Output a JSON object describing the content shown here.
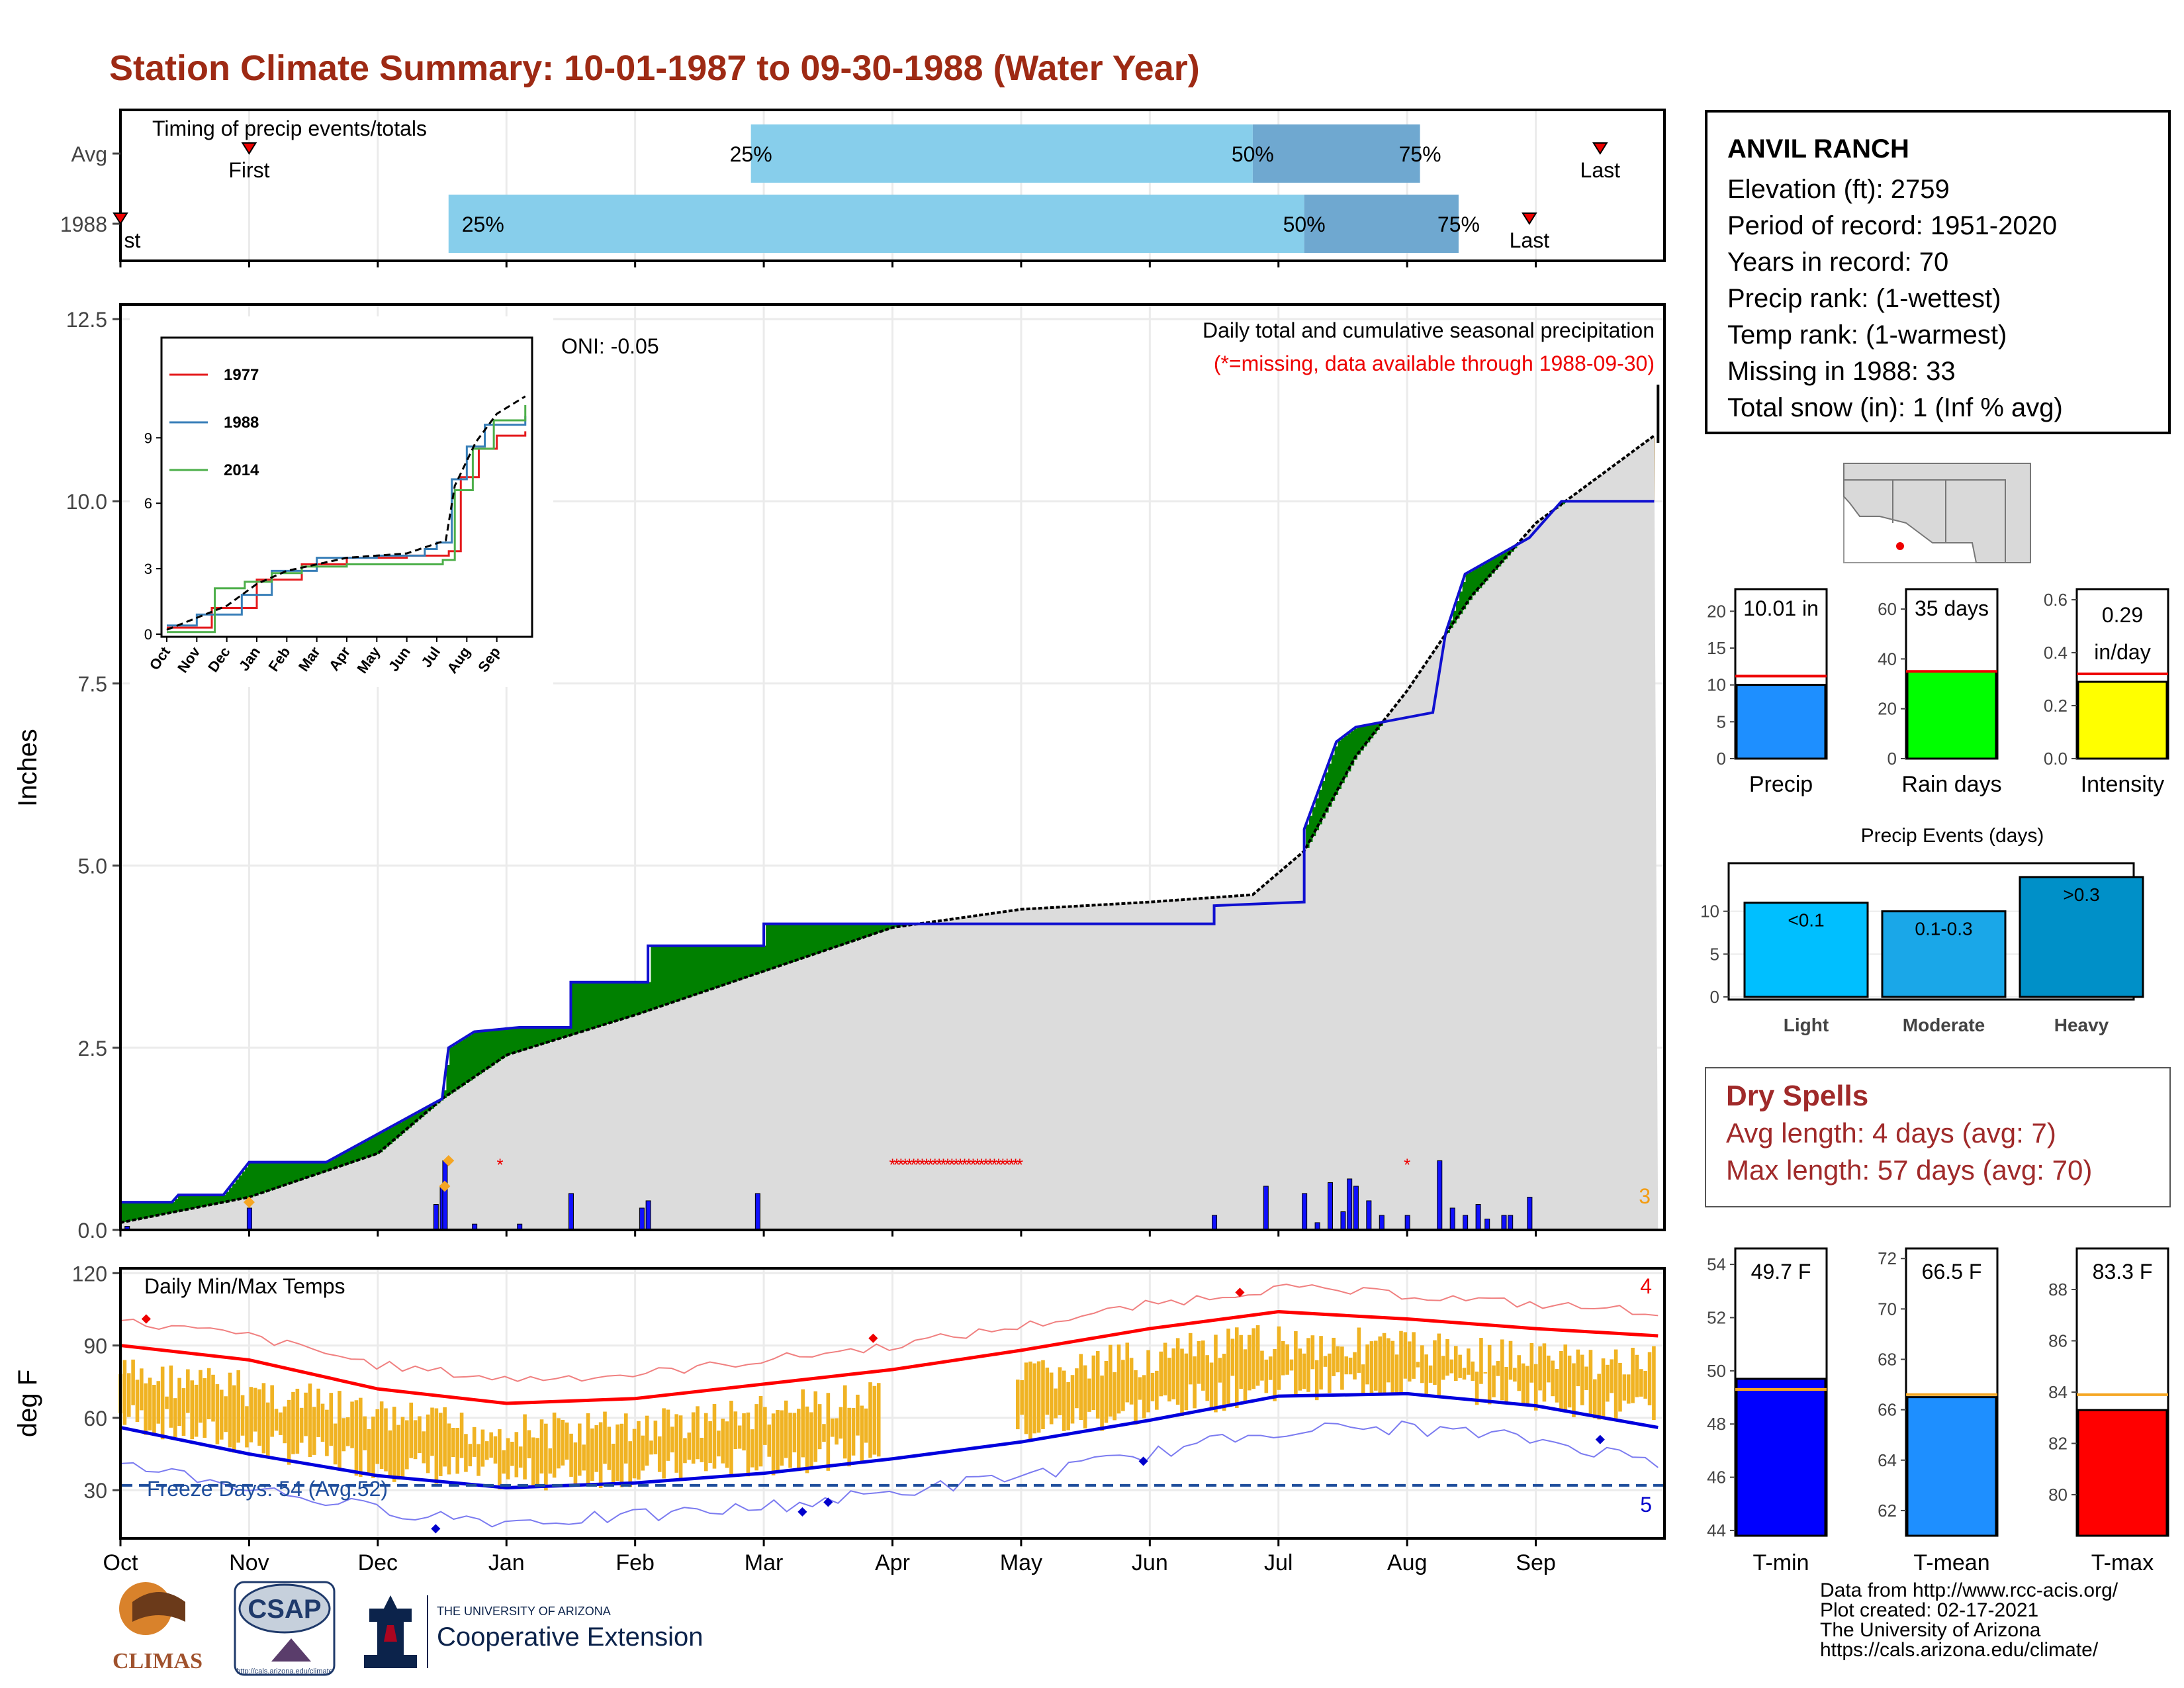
{
  "title": "Station Climate Summary: 10-01-1987 to 09-30-1988 (Water Year)",
  "timing": {
    "label": "Timing of precip events/totals",
    "rows": [
      {
        "name": "Avg",
        "first_month": 1.0,
        "p25_month": 4.9,
        "p50_month": 8.8,
        "p75_month": 10.1,
        "last_month": 11.5
      },
      {
        "name": "1988",
        "first_month": 0.0,
        "p25_month": 2.55,
        "p50_month": 9.2,
        "p75_month": 10.4,
        "last_month": 10.95
      }
    ],
    "first_label": "First",
    "last_label": "Last",
    "first_label_clipped": "st",
    "p25": "25%",
    "p50": "50%",
    "p75": "75%"
  },
  "precip_panel": {
    "ylabel": "Inches",
    "note": "Daily total and cumulative seasonal precipitation",
    "missing_note": "(*=missing, data available through 1988-09-30)",
    "oni": "ONI: -0.05",
    "count_label": "3",
    "yticks": [
      "0.0",
      "2.5",
      "5.0",
      "7.5",
      "10.0",
      "12.5"
    ]
  },
  "inset": {
    "legend": [
      "1977",
      "1988",
      "2014"
    ],
    "legend_colors": [
      "#e41a1c",
      "#377eb8",
      "#4daf4a"
    ],
    "yticks": [
      "0",
      "3",
      "6",
      "9"
    ],
    "xticks": [
      "Oct",
      "Nov",
      "Dec",
      "Jan",
      "Feb",
      "Mar",
      "Apr",
      "May",
      "Jun",
      "Jul",
      "Aug",
      "Sep"
    ]
  },
  "temp_panel": {
    "ylabel": "deg F",
    "label": "Daily Min/Max Temps",
    "freeze": "Freeze Days: 54 (Avg:52)",
    "count_hi": "4",
    "count_lo": "5",
    "yticks": [
      "30",
      "60",
      "90",
      "120"
    ]
  },
  "months": [
    "Oct",
    "Nov",
    "Dec",
    "Jan",
    "Feb",
    "Mar",
    "Apr",
    "May",
    "Jun",
    "Jul",
    "Aug",
    "Sep"
  ],
  "station": {
    "name": "ANVIL RANCH",
    "lines": [
      "Elevation (ft): 2759",
      "Period of record: 1951-2020",
      "Years in record: 70",
      "Precip rank:  (1-wettest)",
      "Temp rank:  (1-warmest)",
      "Missing in 1988: 33",
      "Total snow (in): 1 (Inf % avg)"
    ]
  },
  "summary_bars": [
    {
      "label": "Precip",
      "value_text": "10.01 in",
      "yticks": [
        "0",
        "5",
        "10",
        "15",
        "20"
      ]
    },
    {
      "label": "Rain days",
      "value_text": "35 days",
      "yticks": [
        "0",
        "20",
        "40",
        "60"
      ]
    },
    {
      "label": "Intensity",
      "value_text": "0.29\nin/day",
      "yticks": [
        "0.0",
        "0.2",
        "0.4",
        "0.6"
      ]
    }
  ],
  "events": {
    "title": "Precip Events (days)",
    "categories": [
      "Light",
      "Moderate",
      "Heavy"
    ],
    "bar_labels": [
      "<0.1",
      "0.1-0.3",
      ">0.3"
    ],
    "yticks": [
      "0",
      "5",
      "10"
    ]
  },
  "dry": {
    "title": "Dry Spells",
    "avg": "Avg length: 4 days (avg: 7)",
    "max": "Max length: 57 days (avg: 70)"
  },
  "temp_bars": [
    {
      "label": "T-min",
      "value_text": "49.7 F",
      "yticks": [
        "44",
        "46",
        "48",
        "50",
        "52",
        "54"
      ]
    },
    {
      "label": "T-mean",
      "value_text": "66.5 F",
      "yticks": [
        "62",
        "64",
        "66",
        "68",
        "70",
        "72"
      ]
    },
    {
      "label": "T-max",
      "value_text": "83.3 F",
      "yticks": [
        "80",
        "82",
        "84",
        "86",
        "88"
      ]
    }
  ],
  "footer": [
    "Data from http://www.rcc-acis.org/",
    "Plot created: 02-17-2021",
    "The University of Arizona",
    "https://cals.arizona.edu/climate/"
  ],
  "logos": {
    "climas": "CLIMAS",
    "csap": "CSAP",
    "ua_top": "THE UNIVERSITY OF ARIZONA",
    "ua_bottom": "Cooperative Extension",
    "csap_url": "http://cals.arizona.edu/climate"
  },
  "colors": {
    "title": "#9e2a14",
    "light_blue": "#87ceeb",
    "mid_blue": "#6fa8d0",
    "brown": "#8b5a00",
    "green": "#008000",
    "gold": "#f0b323"
  },
  "chart_data": [
    {
      "type": "area",
      "title": "Daily total and cumulative seasonal precipitation",
      "ylabel": "Inches",
      "ylim": [
        0,
        12.7
      ],
      "x_unit": "month index from Oct 1",
      "series": [
        {
          "name": "1988 cumulative",
          "points": [
            [
              0,
              0.38
            ],
            [
              0.4,
              0.38
            ],
            [
              0.45,
              0.48
            ],
            [
              0.8,
              0.48
            ],
            [
              1.0,
              0.93
            ],
            [
              1.6,
              0.93
            ],
            [
              2.5,
              1.8
            ],
            [
              2.55,
              2.5
            ],
            [
              2.75,
              2.72
            ],
            [
              3.1,
              2.78
            ],
            [
              3.5,
              2.78
            ],
            [
              3.5,
              3.4
            ],
            [
              4.1,
              3.4
            ],
            [
              4.1,
              3.9
            ],
            [
              5.0,
              3.9
            ],
            [
              5.0,
              4.2
            ],
            [
              6.0,
              4.2
            ],
            [
              7.0,
              4.2
            ],
            [
              8.5,
              4.2
            ],
            [
              8.5,
              4.45
            ],
            [
              9.2,
              4.5
            ],
            [
              9.2,
              5.5
            ],
            [
              9.45,
              6.7
            ],
            [
              9.6,
              6.9
            ],
            [
              10.2,
              7.1
            ],
            [
              10.3,
              8.2
            ],
            [
              10.45,
              9.0
            ],
            [
              10.95,
              9.5
            ],
            [
              11.2,
              10.0
            ],
            [
              11.92,
              10.0
            ]
          ]
        },
        {
          "name": "Average cumulative",
          "points": [
            [
              0,
              0.1
            ],
            [
              1,
              0.45
            ],
            [
              2,
              1.05
            ],
            [
              2.5,
              1.8
            ],
            [
              3,
              2.4
            ],
            [
              4,
              2.95
            ],
            [
              5,
              3.55
            ],
            [
              6,
              4.15
            ],
            [
              7,
              4.4
            ],
            [
              8,
              4.5
            ],
            [
              8.8,
              4.6
            ],
            [
              9.2,
              5.2
            ],
            [
              9.6,
              6.5
            ],
            [
              10,
              7.4
            ],
            [
              10.5,
              8.7
            ],
            [
              11,
              9.7
            ],
            [
              11.92,
              10.9
            ]
          ]
        }
      ]
    },
    {
      "type": "line",
      "title": "",
      "xticks": [
        "Oct",
        "Nov",
        "Dec",
        "Jan",
        "Feb",
        "Mar",
        "Apr",
        "May",
        "Jun",
        "Jul",
        "Aug",
        "Sep"
      ],
      "ylim": [
        0,
        12
      ],
      "series": [
        {
          "name": "1977",
          "points": [
            [
              0,
              0.3
            ],
            [
              1.5,
              1.2
            ],
            [
              3,
              2.5
            ],
            [
              4.5,
              3.2
            ],
            [
              6,
              3.5
            ],
            [
              8,
              3.6
            ],
            [
              9.4,
              3.8
            ],
            [
              9.8,
              7.2
            ],
            [
              10.4,
              8.5
            ],
            [
              11,
              9.1
            ],
            [
              11.95,
              9.3
            ]
          ]
        },
        {
          "name": "1988",
          "points": [
            [
              0,
              0.4
            ],
            [
              1,
              0.9
            ],
            [
              2.5,
              1.8
            ],
            [
              3.5,
              2.9
            ],
            [
              5,
              3.5
            ],
            [
              7,
              3.6
            ],
            [
              8.6,
              3.9
            ],
            [
              9.0,
              4.2
            ],
            [
              9.5,
              7.1
            ],
            [
              10,
              8.6
            ],
            [
              10.6,
              9.6
            ],
            [
              11.95,
              10.0
            ]
          ]
        },
        {
          "name": "2014",
          "points": [
            [
              0,
              0.1
            ],
            [
              1.5,
              0.1
            ],
            [
              1.6,
              2.1
            ],
            [
              2.6,
              2.4
            ],
            [
              3.5,
              2.8
            ],
            [
              4.5,
              3.1
            ],
            [
              6,
              3.2
            ],
            [
              8,
              3.2
            ],
            [
              9.2,
              3.4
            ],
            [
              9.6,
              6.6
            ],
            [
              10.2,
              8.5
            ],
            [
              10.9,
              9.8
            ],
            [
              11.95,
              10.5
            ]
          ]
        }
      ]
    },
    {
      "type": "bar",
      "title": "Precip Events (days)",
      "categories": [
        "Light",
        "Moderate",
        "Heavy"
      ],
      "values": [
        11,
        10,
        14
      ],
      "ylim": [
        0,
        15
      ]
    },
    {
      "type": "bar",
      "categories": [
        "Precip",
        "Rain days",
        "Intensity"
      ],
      "values": [
        10.01,
        35,
        0.29
      ],
      "averages": [
        11.2,
        35,
        0.32
      ]
    },
    {
      "type": "bar",
      "categories": [
        "T-min",
        "T-mean",
        "T-max"
      ],
      "values": [
        49.7,
        66.5,
        83.3
      ],
      "averages": [
        49.3,
        66.6,
        83.9
      ]
    },
    {
      "type": "line",
      "title": "Daily Min/Max Temps",
      "ylabel": "deg F",
      "ylim": [
        10,
        122
      ],
      "series": [
        {
          "name": "Avg max",
          "points": [
            [
              0,
              90
            ],
            [
              1,
              84
            ],
            [
              2,
              72
            ],
            [
              3,
              66
            ],
            [
              4,
              68
            ],
            [
              5,
              74
            ],
            [
              6,
              80
            ],
            [
              7,
              88
            ],
            [
              8,
              97
            ],
            [
              9,
              104
            ],
            [
              10,
              101
            ],
            [
              11,
              97
            ],
            [
              11.95,
              94
            ]
          ]
        },
        {
          "name": "Avg min",
          "points": [
            [
              0,
              56
            ],
            [
              1,
              45
            ],
            [
              2,
              36
            ],
            [
              3,
              31
            ],
            [
              4,
              33
            ],
            [
              5,
              37
            ],
            [
              6,
              43
            ],
            [
              7,
              50
            ],
            [
              8,
              59
            ],
            [
              9,
              69
            ],
            [
              10,
              70
            ],
            [
              11,
              65
            ],
            [
              11.95,
              56
            ]
          ]
        },
        {
          "name": "Freeze line",
          "points": [
            [
              0,
              32
            ],
            [
              11.95,
              32
            ]
          ]
        }
      ]
    }
  ]
}
